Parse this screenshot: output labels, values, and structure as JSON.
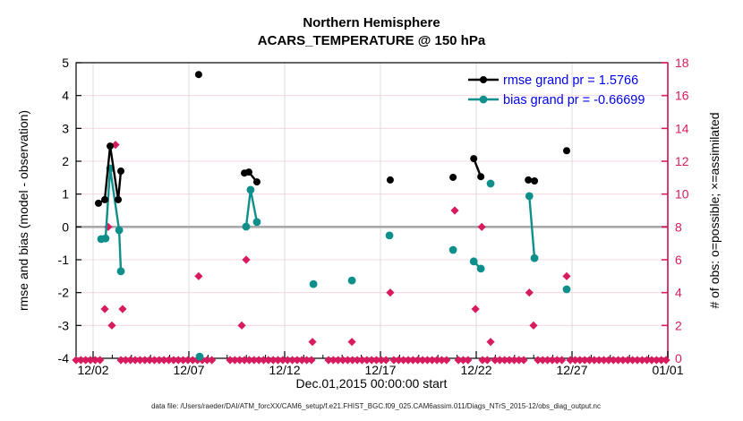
{
  "figure": {
    "title_line1": "Northern Hemisphere",
    "title_line2": "ACARS_TEMPERATURE @ 150 hPa",
    "xlabel": "Dec.01,2015 00:00:00 start",
    "ylabel_left": "rmse and bias (model - observation)",
    "ylabel_right": "# of obs: o=possible; ×=assimilated",
    "footer": "data file: /Users/raeder/DAI/ATM_forcXX/CAM6_setup/f.e21.FHIST_BGC.f09_025.CAM6assim.011/Diags_NTrS_2015-12/obs_diag_output.nc",
    "legend": [
      {
        "label": "rmse grand pr = 1.5766"
      },
      {
        "label": "bias grand pr = -0.66699"
      }
    ]
  },
  "colors": {
    "rmse": "#000000",
    "bias": "#0E8F8C",
    "obs": "#D81A5E",
    "legend_text": "#0000EE",
    "zero_line": "#A9A9A9",
    "grid_h": "#F5D8E0",
    "grid_v": "#DCDCDC",
    "axis": "#000000"
  },
  "chart_data": {
    "type": "line",
    "title": "Northern Hemisphere",
    "subtitle": "ACARS_TEMPERATURE @ 150 hPa",
    "xlabel": "Dec.01,2015 00:00:00 start",
    "x_axis": {
      "tick_labels": [
        "12/02",
        "12/07",
        "12/12",
        "12/17",
        "12/22",
        "12/27",
        "01/01"
      ],
      "tick_days": [
        1,
        6,
        11,
        16,
        21,
        26,
        31
      ],
      "minor_tick_step_days": 1,
      "range_days": [
        0.11,
        31
      ]
    },
    "y_left": {
      "label": "rmse and bias (model - observation)",
      "range": [
        -4,
        5
      ],
      "ticks": [
        -4,
        -3,
        -2,
        -1,
        0,
        1,
        2,
        3,
        4,
        5
      ],
      "zero_reference_line": true
    },
    "y_right": {
      "label": "# of obs: o=possible; ×=assimilated",
      "range": [
        0,
        18
      ],
      "ticks": [
        0,
        2,
        4,
        6,
        8,
        10,
        12,
        14,
        16,
        18
      ]
    },
    "legend_position": "top-right-inside",
    "grid": true,
    "series": [
      {
        "name": "rmse grand pr = 1.5766",
        "axis": "left",
        "marker": "circle",
        "grand_mean": 1.5766,
        "segments": [
          [
            [
              1.28,
              0.72
            ],
            [
              1.61,
              0.83
            ],
            [
              1.89,
              2.46
            ],
            [
              2.31,
              0.83
            ],
            [
              2.45,
              1.7
            ]
          ],
          [
            [
              6.51,
              4.64
            ]
          ],
          [
            [
              8.9,
              1.64
            ],
            [
              9.13,
              1.67
            ],
            [
              9.55,
              1.37
            ]
          ],
          [
            [
              16.51,
              1.43
            ]
          ],
          [
            [
              19.79,
              1.51
            ]
          ],
          [
            [
              20.87,
              2.08
            ],
            [
              21.24,
              1.53
            ]
          ],
          [
            [
              23.72,
              1.43
            ],
            [
              24.04,
              1.4
            ]
          ],
          [
            [
              25.72,
              2.32
            ]
          ]
        ]
      },
      {
        "name": "bias grand pr = -0.66699",
        "axis": "left",
        "marker": "circle",
        "grand_mean": -0.66699,
        "segments": [
          [
            [
              1.42,
              -0.37
            ],
            [
              1.65,
              -0.35
            ],
            [
              1.89,
              1.78
            ],
            [
              2.36,
              -0.1
            ],
            [
              2.45,
              -1.35
            ]
          ],
          [
            [
              6.56,
              -3.95
            ]
          ],
          [
            [
              8.99,
              0.01
            ],
            [
              9.22,
              1.13
            ],
            [
              9.55,
              0.15
            ]
          ],
          [
            [
              12.5,
              -1.74
            ]
          ],
          [
            [
              14.51,
              -1.63
            ]
          ],
          [
            [
              16.47,
              -0.26
            ]
          ],
          [
            [
              19.79,
              -0.7
            ]
          ],
          [
            [
              20.87,
              -1.05
            ],
            [
              21.24,
              -1.27
            ]
          ],
          [
            [
              21.75,
              1.32
            ]
          ],
          [
            [
              23.77,
              0.94
            ],
            [
              24.04,
              -0.95
            ]
          ],
          [
            [
              25.72,
              -1.9
            ]
          ]
        ]
      },
      {
        "name": "# of obs (possible / assimilated)",
        "axis": "right",
        "marker": "diamond",
        "points": [
          [
            1.61,
            3
          ],
          [
            1.79,
            8
          ],
          [
            1.98,
            2
          ],
          [
            2.17,
            13
          ],
          [
            2.54,
            3
          ],
          [
            6.51,
            5
          ],
          [
            8.76,
            2
          ],
          [
            8.99,
            6
          ],
          [
            12.45,
            1
          ],
          [
            14.51,
            1
          ],
          [
            16.51,
            4
          ],
          [
            19.88,
            9
          ],
          [
            20.96,
            3
          ],
          [
            21.29,
            8
          ],
          [
            21.75,
            1
          ],
          [
            23.77,
            4
          ],
          [
            23.99,
            2
          ],
          [
            25.72,
            5
          ]
        ],
        "zero_row_segments_days": [
          [
            0.11,
            1.47
          ],
          [
            2.45,
            7.36
          ],
          [
            8.15,
            12.4
          ],
          [
            13.29,
            16.33
          ],
          [
            16.7,
            19.6
          ],
          [
            20.07,
            20.77
          ],
          [
            21.33,
            21.65
          ],
          [
            21.98,
            23.52
          ],
          [
            24.22,
            25.53
          ],
          [
            25.91,
            31.0
          ]
        ],
        "zero_row_step_days": 0.25
      }
    ]
  }
}
